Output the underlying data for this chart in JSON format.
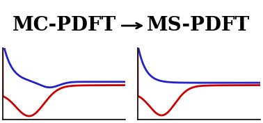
{
  "title_left": "MC-PDFT",
  "title_right": "MS-PDFT",
  "title_fontsize": 20,
  "title_fontweight": "bold",
  "blue_color": "#2222cc",
  "red_color": "#cc0000",
  "line_width": 2.0,
  "bg_color": "#ffffff",
  "figsize": [
    3.78,
    1.77
  ],
  "dpi": 100,
  "arrow_lw": 2.0,
  "arrow_mutation_scale": 14
}
